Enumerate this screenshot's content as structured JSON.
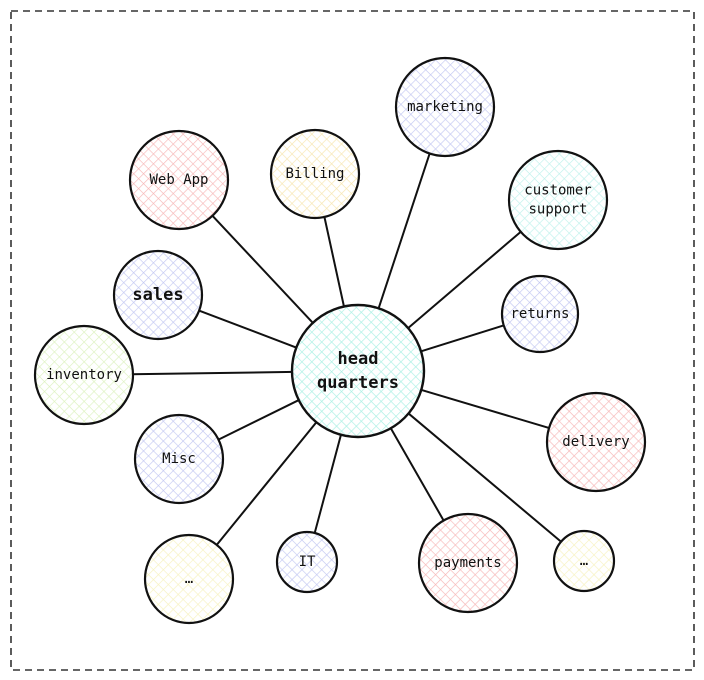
{
  "hub": {
    "lines": [
      "head",
      "quarters"
    ],
    "color": "#a8f0e4"
  },
  "nodes": [
    {
      "id": "web-app",
      "lines": [
        "Web App"
      ],
      "color": "#f7b8b8"
    },
    {
      "id": "billing",
      "lines": [
        "Billing"
      ],
      "color": "#f7e6b0"
    },
    {
      "id": "marketing",
      "lines": [
        "marketing"
      ],
      "color": "#c3c8f2"
    },
    {
      "id": "customer-support",
      "lines": [
        "customer",
        "support"
      ],
      "color": "#bff2ec"
    },
    {
      "id": "sales",
      "lines": [
        "sales"
      ],
      "color": "#c3c8f2"
    },
    {
      "id": "returns",
      "lines": [
        "returns"
      ],
      "color": "#c3c8f2"
    },
    {
      "id": "inventory",
      "lines": [
        "inventory"
      ],
      "color": "#ddf2bf"
    },
    {
      "id": "misc",
      "lines": [
        "Misc"
      ],
      "color": "#c3c8f2"
    },
    {
      "id": "delivery",
      "lines": [
        "delivery"
      ],
      "color": "#f7b8b8"
    },
    {
      "id": "more-left",
      "lines": [
        "…"
      ],
      "color": "#f7f2c0"
    },
    {
      "id": "it",
      "lines": [
        "IT"
      ],
      "color": "#c3c8f2"
    },
    {
      "id": "payments",
      "lines": [
        "payments"
      ],
      "color": "#f7b8b8"
    },
    {
      "id": "more-right",
      "lines": [
        "…"
      ],
      "color": "#f7f2c0"
    }
  ]
}
